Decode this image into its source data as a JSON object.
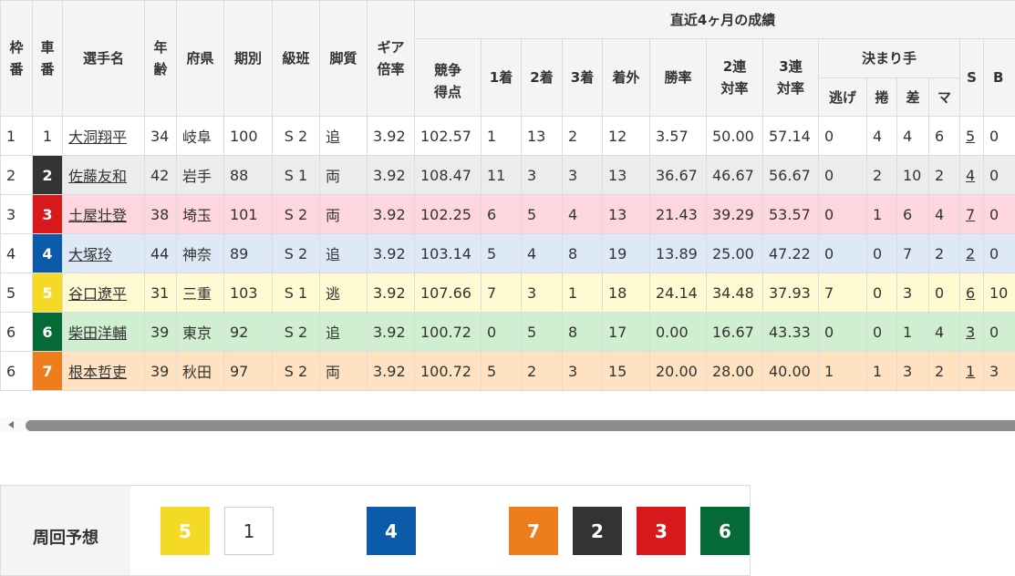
{
  "header": {
    "frame": "枠\n番",
    "car": "車\n番",
    "name": "選手名",
    "age": "年\n齢",
    "pref": "府県",
    "term": "期別",
    "class": "級班",
    "style": "脚質",
    "gear": "ギア\n倍率",
    "recent": "直近4ヶ月の成績",
    "score": "競争\n得点",
    "first": "1着",
    "second": "2着",
    "third": "3着",
    "out": "着外",
    "win": "勝率",
    "quinella": "2連\n対率",
    "trio": "3連\n対率",
    "kimarite": "決まり手",
    "nige": "逃げ",
    "makuri": "捲",
    "sashi": "差",
    "mark": "マ",
    "s": "S",
    "b": "B"
  },
  "colors": {
    "1": "#ffffff",
    "2": "#333333",
    "3": "#d7191c",
    "4": "#0b5ba8",
    "5": "#f4da26",
    "6": "#066a37",
    "7": "#ee7d1e"
  },
  "row_bg": {
    "1": "#ffffff",
    "2": "#ececec",
    "3": "#fdd6df",
    "4": "#dde9f6",
    "5": "#fffad2",
    "6": "#d0eed0",
    "7": "#fee2c2"
  },
  "rows": [
    {
      "frame": "1",
      "car": "1",
      "name": "大洞翔平",
      "age": "34",
      "pref": "岐阜",
      "term": "100",
      "class": "S 2",
      "style": "追",
      "gear": "3.92",
      "score": "102.57",
      "first": "1",
      "second": "13",
      "third": "2",
      "out": "12",
      "win": "3.57",
      "quinella": "50.00",
      "trio": "57.14",
      "nige": "0",
      "makuri": "4",
      "sashi": "4",
      "mark": "6",
      "s": "5",
      "b": "0"
    },
    {
      "frame": "2",
      "car": "2",
      "name": "佐藤友和",
      "age": "42",
      "pref": "岩手",
      "term": "88",
      "class": "S 1",
      "style": "両",
      "gear": "3.92",
      "score": "108.47",
      "first": "11",
      "second": "3",
      "third": "3",
      "out": "13",
      "win": "36.67",
      "quinella": "46.67",
      "trio": "56.67",
      "nige": "0",
      "makuri": "2",
      "sashi": "10",
      "mark": "2",
      "s": "4",
      "b": "0"
    },
    {
      "frame": "3",
      "car": "3",
      "name": "土屋壮登",
      "age": "38",
      "pref": "埼玉",
      "term": "101",
      "class": "S 2",
      "style": "両",
      "gear": "3.92",
      "score": "102.25",
      "first": "6",
      "second": "5",
      "third": "4",
      "out": "13",
      "win": "21.43",
      "quinella": "39.29",
      "trio": "53.57",
      "nige": "0",
      "makuri": "1",
      "sashi": "6",
      "mark": "4",
      "s": "7",
      "b": "0"
    },
    {
      "frame": "4",
      "car": "4",
      "name": "大塚玲",
      "age": "44",
      "pref": "神奈",
      "term": "89",
      "class": "S 2",
      "style": "追",
      "gear": "3.92",
      "score": "103.14",
      "first": "5",
      "second": "4",
      "third": "8",
      "out": "19",
      "win": "13.89",
      "quinella": "25.00",
      "trio": "47.22",
      "nige": "0",
      "makuri": "0",
      "sashi": "7",
      "mark": "2",
      "s": "2",
      "b": "0"
    },
    {
      "frame": "5",
      "car": "5",
      "name": "谷口遼平",
      "age": "31",
      "pref": "三重",
      "term": "103",
      "class": "S 1",
      "style": "逃",
      "gear": "3.92",
      "score": "107.66",
      "first": "7",
      "second": "3",
      "third": "1",
      "out": "18",
      "win": "24.14",
      "quinella": "34.48",
      "trio": "37.93",
      "nige": "7",
      "makuri": "0",
      "sashi": "3",
      "mark": "0",
      "s": "6",
      "b": "10"
    },
    {
      "frame": "6",
      "car": "6",
      "name": "柴田洋輔",
      "age": "39",
      "pref": "東京",
      "term": "92",
      "class": "S 2",
      "style": "追",
      "gear": "3.92",
      "score": "100.72",
      "first": "0",
      "second": "5",
      "third": "8",
      "out": "17",
      "win": "0.00",
      "quinella": "16.67",
      "trio": "43.33",
      "nige": "0",
      "makuri": "0",
      "sashi": "1",
      "mark": "4",
      "s": "3",
      "b": "0"
    },
    {
      "frame": "6",
      "car": "7",
      "name": "根本哲吏",
      "age": "39",
      "pref": "秋田",
      "term": "97",
      "class": "S 2",
      "style": "両",
      "gear": "3.92",
      "score": "100.72",
      "first": "5",
      "second": "2",
      "third": "3",
      "out": "15",
      "win": "20.00",
      "quinella": "28.00",
      "trio": "40.00",
      "nige": "1",
      "makuri": "1",
      "sashi": "3",
      "mark": "2",
      "s": "1",
      "b": "3"
    }
  ],
  "prediction": {
    "label": "周回予想",
    "order": [
      {
        "car": "5",
        "gap": false
      },
      {
        "car": "1",
        "gap": false
      },
      {
        "car": "4",
        "gap": true
      },
      {
        "car": "7",
        "gap": true
      },
      {
        "car": "2",
        "gap": false
      },
      {
        "car": "3",
        "gap": false
      },
      {
        "car": "6",
        "gap": false
      }
    ]
  }
}
